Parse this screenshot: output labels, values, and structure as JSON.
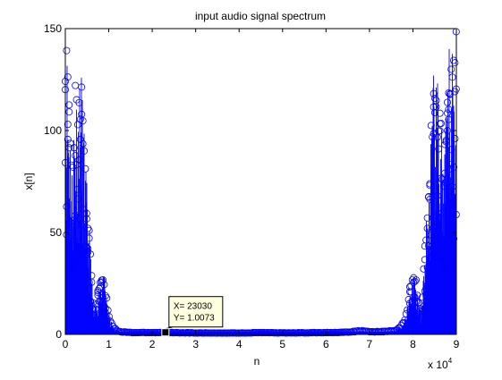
{
  "colors": {
    "series": "#0000ff",
    "axes": "#000000",
    "datatip_bg": "#ffffe0",
    "background": "#ffffff"
  },
  "chart_data": {
    "type": "stem",
    "title": "input audio signal spectrum",
    "xlabel": "n",
    "ylabel": "x[n]",
    "xlim": [
      0,
      90000
    ],
    "ylim": [
      0,
      150
    ],
    "x_multiplier_label": "x 10",
    "x_multiplier_exp": "4",
    "xticks": [
      0,
      10000,
      20000,
      30000,
      40000,
      50000,
      60000,
      70000,
      80000,
      90000
    ],
    "xtick_labels": [
      "0",
      "1",
      "2",
      "3",
      "4",
      "5",
      "6",
      "7",
      "8",
      "9"
    ],
    "yticks": [
      0,
      50,
      100,
      150
    ],
    "ytick_labels": [
      "0",
      "50",
      "100",
      "150"
    ],
    "marker": "circle",
    "grid": false,
    "envelope": {
      "x": [
        0,
        300,
        800,
        1500,
        2000,
        2500,
        3000,
        3500,
        4000,
        4500,
        5000,
        5500,
        6000,
        6500,
        7000,
        7500,
        8000,
        8500,
        9000,
        9500,
        10000,
        10500,
        11000,
        11500,
        12000,
        13000,
        14000,
        16000,
        18000,
        20000,
        22000,
        25000,
        30000,
        40000,
        45000,
        50000,
        60000,
        65000,
        68000,
        70000,
        72000,
        76000,
        77000,
        78000,
        78500,
        79000,
        79500,
        80000,
        80500,
        81000,
        81500,
        82000,
        82500,
        83000,
        83500,
        84000,
        84500,
        85000,
        85500,
        86000,
        86500,
        87000,
        87500,
        88000,
        88500,
        89200,
        89700,
        90000
      ],
      "y": [
        149,
        148,
        134,
        85,
        118,
        128,
        122,
        136,
        120,
        92,
        72,
        55,
        35,
        12,
        14,
        24,
        30,
        31,
        28,
        19,
        12,
        7,
        4,
        3,
        2,
        1.5,
        1.2,
        1.0,
        1.0,
        1.0,
        1.0,
        1.0,
        0.8,
        0.8,
        1.0,
        0.8,
        1.0,
        1.2,
        2.0,
        1.5,
        1.5,
        2,
        4,
        7,
        12,
        19,
        28,
        31,
        30,
        24,
        14,
        12,
        35,
        55,
        72,
        92,
        120,
        136,
        122,
        128,
        118,
        85,
        98,
        134,
        148,
        149,
        148,
        149
      ]
    },
    "datatip": {
      "x": 23030,
      "y": 1.0073,
      "label_x": "X= 23030",
      "label_y": "Y= 1.0073"
    }
  }
}
